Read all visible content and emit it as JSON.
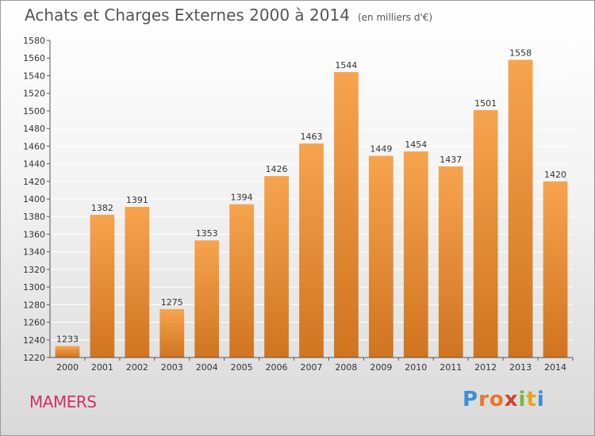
{
  "title": "Achats et Charges Externes 2000 à 2014",
  "subtitle": "(en milliers d'€)",
  "city": "MAMERS",
  "logo": {
    "text": "Proxiti",
    "letter_colors": [
      "#3a8fd6",
      "#e8762b",
      "#e8762b",
      "#d43d33",
      "#74b83f",
      "#e8a21c",
      "#3a8fd6"
    ]
  },
  "colors": {
    "bar_light": "#f7a44e",
    "bar_dark": "#d07420",
    "city": "#d0306a",
    "grid": "#ffffff",
    "axis_text": "#333333"
  },
  "chart_data": {
    "type": "bar",
    "title": "Achats et Charges Externes 2000 à 2014",
    "subtitle": "(en milliers d'€)",
    "categories": [
      "2000",
      "2001",
      "2002",
      "2003",
      "2004",
      "2005",
      "2006",
      "2007",
      "2008",
      "2009",
      "2010",
      "2011",
      "2012",
      "2013",
      "2014"
    ],
    "values": [
      1233,
      1382,
      1391,
      1275,
      1353,
      1394,
      1426,
      1463,
      1544,
      1449,
      1454,
      1437,
      1501,
      1558,
      1420
    ],
    "ylim": [
      1220,
      1580
    ],
    "ytick_step": 20,
    "grid": true,
    "data_labels": true,
    "xlabel": "",
    "ylabel": ""
  }
}
